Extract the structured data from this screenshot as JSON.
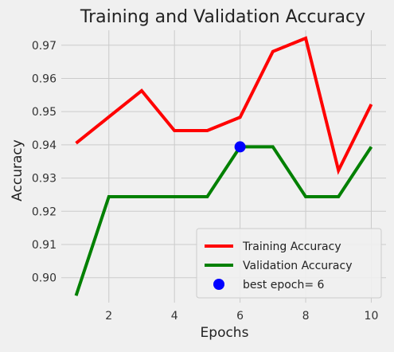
{
  "chart_data": {
    "type": "line",
    "title": "Training and Validation Accuracy",
    "xlabel": "Epochs",
    "ylabel": "Accuracy",
    "x": [
      1,
      2,
      3,
      4,
      5,
      6,
      7,
      8,
      9,
      10
    ],
    "xlim": [
      0.55,
      10.45
    ],
    "ylim": [
      0.8925,
      0.9745
    ],
    "xticks": [
      2,
      4,
      6,
      8,
      10
    ],
    "yticks": [
      0.9,
      0.91,
      0.92,
      0.93,
      0.94,
      0.95,
      0.96,
      0.97
    ],
    "ytick_labels": [
      "0.90",
      "0.91",
      "0.92",
      "0.93",
      "0.94",
      "0.95",
      "0.96",
      "0.97"
    ],
    "grid": true,
    "legend_position": "lower-right",
    "series": [
      {
        "name": "Training Accuracy",
        "color": "#ff0000",
        "values": [
          0.9405,
          0.9484,
          0.9563,
          0.9443,
          0.9443,
          0.9483,
          0.9681,
          0.9721,
          0.9323,
          0.9522
        ]
      },
      {
        "name": "Validation Accuracy",
        "color": "#008000",
        "values": [
          0.8946,
          0.9244,
          0.9244,
          0.9244,
          0.9244,
          0.9394,
          0.9394,
          0.9244,
          0.9244,
          0.9394
        ]
      }
    ],
    "best_point": {
      "name": "best epoch= 6",
      "x": 6,
      "y": 0.9394,
      "color": "#0000ff"
    }
  }
}
